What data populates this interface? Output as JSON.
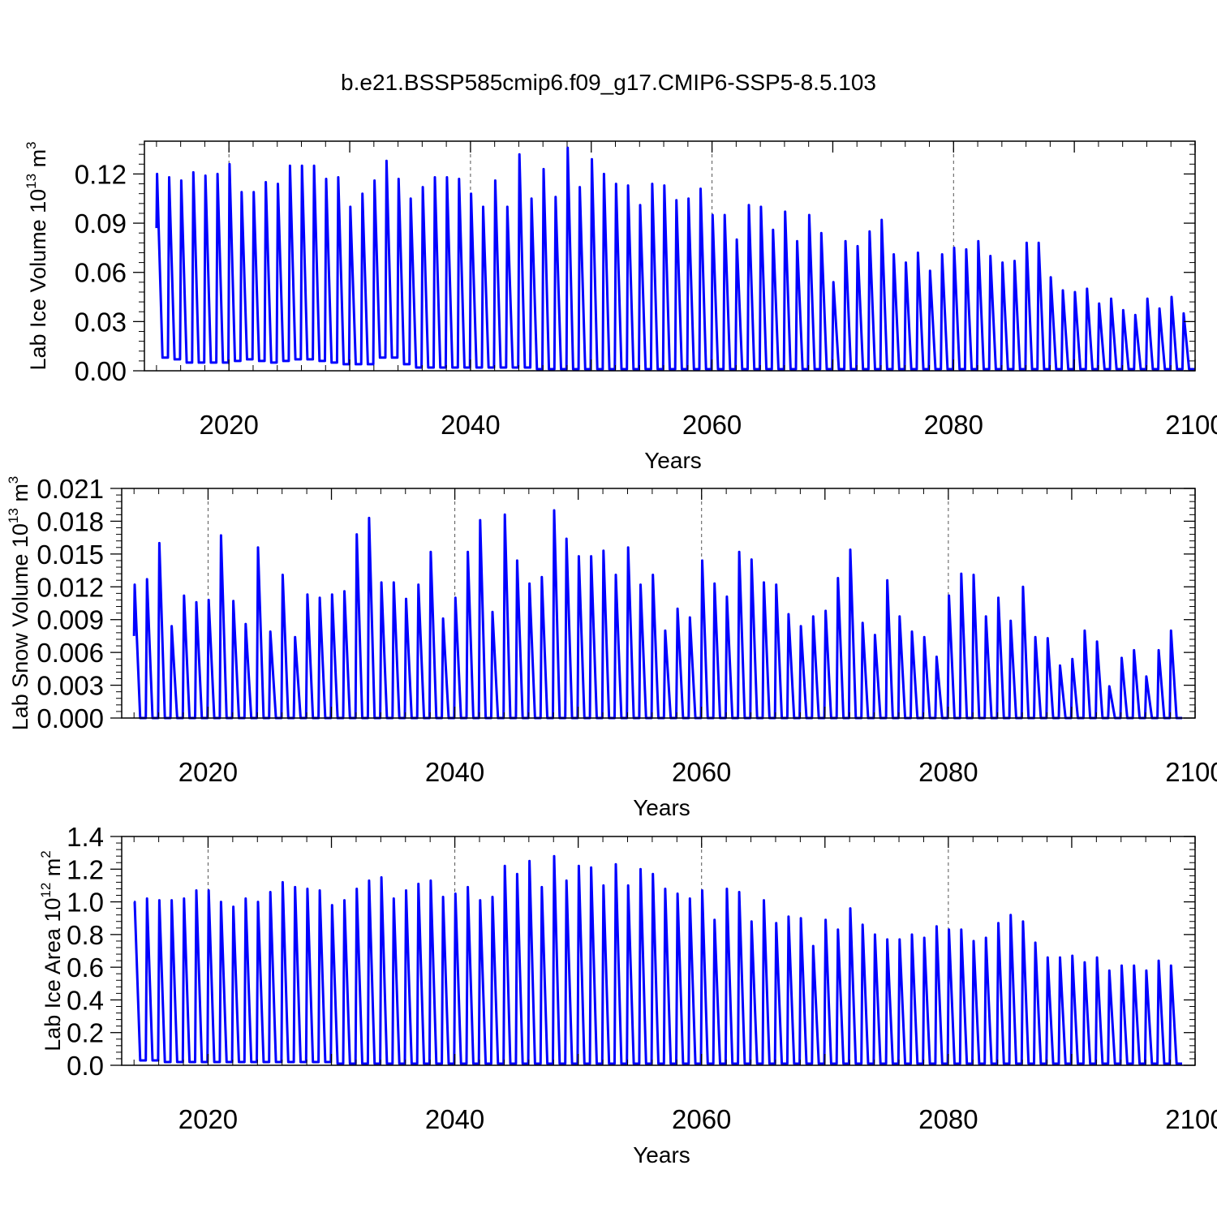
{
  "figure_title": "b.e21.BSSP585cmip6.f09_g17.CMIP6-SSP5-8.5.103",
  "line_color": "#0000ff",
  "chart_data": [
    {
      "type": "line",
      "ylabel": "Lab Ice Volume",
      "ylabel_unit_base": "10",
      "ylabel_unit_exp": "13",
      "ylabel_unit_tail": "m",
      "ylabel_unit_tail_exp": "3",
      "xlabel": "Years",
      "xlim": [
        2013,
        2100
      ],
      "ylim": [
        0,
        0.14
      ],
      "yticks": [
        "0.00",
        "0.03",
        "0.06",
        "0.09",
        "0.12"
      ],
      "ytick_values": [
        0,
        0.03,
        0.06,
        0.09,
        0.12
      ],
      "xticks": [
        "2020",
        "2040",
        "2060",
        "2080",
        "2100"
      ],
      "xtick_values": [
        2020,
        2040,
        2060,
        2080,
        2100
      ],
      "series": [
        {
          "start_year": 2014,
          "start_value": 0.087,
          "annual_max": [
            0.12,
            0.118,
            0.116,
            0.121,
            0.119,
            0.12,
            0.126,
            0.109,
            0.109,
            0.115,
            0.114,
            0.125,
            0.125,
            0.125,
            0.117,
            0.118,
            0.1,
            0.108,
            0.116,
            0.128,
            0.117,
            0.105,
            0.112,
            0.118,
            0.118,
            0.117,
            0.108,
            0.1,
            0.116,
            0.1,
            0.132,
            0.105,
            0.123,
            0.106,
            0.136,
            0.112,
            0.129,
            0.12,
            0.114,
            0.113,
            0.101,
            0.114,
            0.113,
            0.104,
            0.105,
            0.111,
            0.095,
            0.095,
            0.08,
            0.101,
            0.1,
            0.086,
            0.097,
            0.079,
            0.095,
            0.084,
            0.054,
            0.079,
            0.076,
            0.085,
            0.092,
            0.071,
            0.066,
            0.072,
            0.061,
            0.071,
            0.075,
            0.074,
            0.079,
            0.07,
            0.066,
            0.067,
            0.078,
            0.078,
            0.057,
            0.049,
            0.048,
            0.05,
            0.041,
            0.044,
            0.037,
            0.034,
            0.044,
            0.038,
            0.045,
            0.035
          ],
          "annual_min": [
            0.008,
            0.007,
            0.005,
            0.005,
            0.005,
            0.005,
            0.006,
            0.007,
            0.006,
            0.005,
            0.006,
            0.007,
            0.007,
            0.006,
            0.005,
            0.004,
            0.004,
            0.004,
            0.008,
            0.008,
            0.004,
            0.002,
            0.002,
            0.002,
            0.002,
            0.002,
            0.002,
            0.002,
            0.002,
            0.002,
            0.002,
            0.001,
            0.001,
            0.001,
            0.001,
            0.001,
            0.001,
            0.001,
            0.001,
            0.001,
            0.001,
            0.001,
            0.001,
            0.001,
            0.001,
            0.001,
            0.001,
            0.001,
            0.001,
            0.001,
            0.001,
            0.001,
            0.001,
            0.001,
            0.001,
            0.001,
            0.001,
            0.001,
            0.001,
            0.001,
            0.001,
            0.001,
            0.001,
            0.001,
            0.001,
            0.001,
            0.001,
            0.001,
            0.001,
            0.001,
            0.001,
            0.001,
            0.001,
            0.001,
            0.001,
            0.001,
            0.001,
            0.001,
            0.001,
            0.001,
            0.001,
            0.001,
            0.001,
            0.001,
            0.001,
            0.001
          ]
        }
      ]
    },
    {
      "type": "line",
      "ylabel": "Lab Snow Volume",
      "ylabel_unit_base": "10",
      "ylabel_unit_exp": "13",
      "ylabel_unit_tail": "m",
      "ylabel_unit_tail_exp": "3",
      "xlabel": "Years",
      "xlim": [
        2013,
        2100
      ],
      "ylim": [
        0,
        0.021
      ],
      "yticks": [
        "0.000",
        "0.003",
        "0.006",
        "0.009",
        "0.012",
        "0.015",
        "0.018",
        "0.021"
      ],
      "ytick_values": [
        0,
        0.003,
        0.006,
        0.009,
        0.012,
        0.015,
        0.018,
        0.021
      ],
      "xticks": [
        "2020",
        "2040",
        "2060",
        "2080",
        "2100"
      ],
      "xtick_values": [
        2020,
        2040,
        2060,
        2080,
        2100
      ],
      "series": [
        {
          "start_year": 2014,
          "start_value": 0.0075,
          "annual_max": [
            0.0122,
            0.0127,
            0.016,
            0.0084,
            0.0112,
            0.0106,
            0.0108,
            0.0167,
            0.0107,
            0.0086,
            0.0156,
            0.0079,
            0.0131,
            0.0074,
            0.0113,
            0.011,
            0.0113,
            0.0116,
            0.0168,
            0.0183,
            0.0124,
            0.0124,
            0.0109,
            0.0122,
            0.0152,
            0.0091,
            0.011,
            0.0152,
            0.0181,
            0.0097,
            0.0186,
            0.0144,
            0.0123,
            0.0129,
            0.019,
            0.0164,
            0.0148,
            0.0148,
            0.0153,
            0.0131,
            0.0156,
            0.0122,
            0.0131,
            0.008,
            0.01,
            0.0092,
            0.0144,
            0.0123,
            0.0111,
            0.0152,
            0.0145,
            0.0124,
            0.0122,
            0.0095,
            0.0084,
            0.0093,
            0.0098,
            0.0128,
            0.0154,
            0.0087,
            0.0076,
            0.0126,
            0.0093,
            0.0079,
            0.0074,
            0.0056,
            0.0112,
            0.0132,
            0.0131,
            0.0093,
            0.011,
            0.0089,
            0.012,
            0.0074,
            0.0073,
            0.0048,
            0.0054,
            0.008,
            0.007,
            0.0029,
            0.0055,
            0.0062,
            0.0038,
            0.0062,
            0.008
          ],
          "annual_min": [
            0.0,
            0.0,
            0.0,
            0.0,
            0.0,
            0.0,
            0.0,
            0.0,
            0.0,
            0.0,
            0.0,
            0.0,
            0.0,
            0.0,
            0.0,
            0.0,
            0.0,
            0.0,
            0.0,
            0.0,
            0.0,
            0.0,
            0.0,
            0.0,
            0.0,
            0.0,
            0.0,
            0.0,
            0.0,
            0.0,
            0.0,
            0.0,
            0.0,
            0.0,
            0.0,
            0.0,
            0.0,
            0.0,
            0.0,
            0.0,
            0.0,
            0.0,
            0.0,
            0.0,
            0.0,
            0.0,
            0.0,
            0.0,
            0.0,
            0.0,
            0.0,
            0.0,
            0.0,
            0.0,
            0.0,
            0.0,
            0.0,
            0.0,
            0.0,
            0.0,
            0.0,
            0.0,
            0.0,
            0.0,
            0.0,
            0.0,
            0.0,
            0.0,
            0.0,
            0.0,
            0.0,
            0.0,
            0.0,
            0.0,
            0.0,
            0.0,
            0.0,
            0.0,
            0.0,
            0.0,
            0.0,
            0.0,
            0.0,
            0.0,
            0.0
          ]
        }
      ]
    },
    {
      "type": "line",
      "ylabel": "Lab Ice Area",
      "ylabel_unit_base": "10",
      "ylabel_unit_exp": "12",
      "ylabel_unit_tail": "m",
      "ylabel_unit_tail_exp": "2",
      "xlabel": "Years",
      "xlim": [
        2013,
        2100
      ],
      "ylim": [
        0,
        1.4
      ],
      "yticks": [
        "0.0",
        "0.2",
        "0.4",
        "0.6",
        "0.8",
        "1.0",
        "1.2",
        "1.4"
      ],
      "ytick_values": [
        0,
        0.2,
        0.4,
        0.6,
        0.8,
        1.0,
        1.2,
        1.4
      ],
      "xticks": [
        "2020",
        "2040",
        "2060",
        "2080",
        "2100"
      ],
      "xtick_values": [
        2020,
        2040,
        2060,
        2080,
        2100
      ],
      "series": [
        {
          "start_year": 2014,
          "start_value": 1.0,
          "annual_max": [
            1.0,
            1.02,
            1.01,
            1.01,
            1.02,
            1.07,
            1.07,
            1.0,
            0.97,
            1.02,
            1.0,
            1.06,
            1.12,
            1.09,
            1.08,
            1.07,
            0.98,
            1.01,
            1.08,
            1.13,
            1.15,
            1.02,
            1.07,
            1.11,
            1.13,
            1.03,
            1.05,
            1.09,
            1.01,
            1.03,
            1.22,
            1.17,
            1.25,
            1.09,
            1.28,
            1.13,
            1.22,
            1.21,
            1.1,
            1.23,
            1.1,
            1.2,
            1.17,
            1.08,
            1.05,
            1.02,
            1.07,
            0.89,
            1.08,
            1.06,
            0.88,
            1.01,
            0.87,
            0.91,
            0.9,
            0.73,
            0.89,
            0.83,
            0.96,
            0.86,
            0.8,
            0.77,
            0.77,
            0.8,
            0.78,
            0.85,
            0.83,
            0.83,
            0.76,
            0.78,
            0.87,
            0.92,
            0.88,
            0.75,
            0.66,
            0.66,
            0.67,
            0.63,
            0.66,
            0.58,
            0.61,
            0.61,
            0.58,
            0.64,
            0.61
          ],
          "annual_min": [
            0.03,
            0.03,
            0.02,
            0.02,
            0.02,
            0.02,
            0.02,
            0.02,
            0.02,
            0.02,
            0.02,
            0.02,
            0.02,
            0.02,
            0.02,
            0.02,
            0.01,
            0.01,
            0.01,
            0.01,
            0.01,
            0.01,
            0.01,
            0.01,
            0.01,
            0.01,
            0.01,
            0.01,
            0.01,
            0.01,
            0.01,
            0.01,
            0.01,
            0.01,
            0.01,
            0.01,
            0.01,
            0.01,
            0.01,
            0.01,
            0.01,
            0.01,
            0.01,
            0.01,
            0.01,
            0.01,
            0.01,
            0.01,
            0.01,
            0.01,
            0.01,
            0.01,
            0.01,
            0.01,
            0.01,
            0.01,
            0.01,
            0.01,
            0.01,
            0.01,
            0.01,
            0.01,
            0.01,
            0.01,
            0.01,
            0.01,
            0.01,
            0.01,
            0.01,
            0.01,
            0.01,
            0.01,
            0.01,
            0.01,
            0.01,
            0.01,
            0.01,
            0.01,
            0.01,
            0.01,
            0.01,
            0.01,
            0.01,
            0.01,
            0.01
          ]
        }
      ]
    }
  ]
}
